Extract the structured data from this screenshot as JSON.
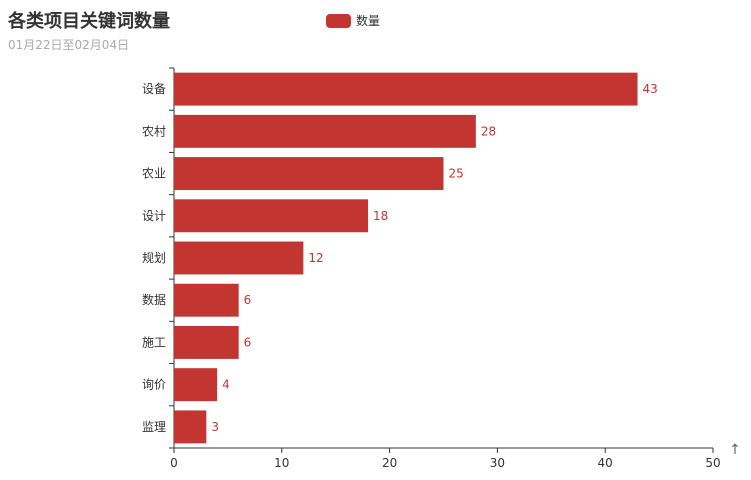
{
  "chart_data": {
    "type": "bar",
    "orientation": "horizontal",
    "title": "各类项目关键词数量",
    "subtitle": "01月22日至02月04日",
    "categories": [
      "设备",
      "农村",
      "农业",
      "设计",
      "规划",
      "数据",
      "施工",
      "询价",
      "监理"
    ],
    "series": [
      {
        "name": "数量",
        "values": [
          43,
          28,
          25,
          18,
          12,
          6,
          6,
          4,
          3
        ],
        "color": "#c23531"
      }
    ],
    "xlim": [
      0,
      50
    ],
    "xticks": [
      0,
      10,
      20,
      30,
      40,
      50
    ],
    "grid": false,
    "legend_position": "top"
  },
  "toolbox": {
    "icon": "up-arrow-icon",
    "glyph": "↑"
  },
  "colors": {
    "bar": "#c23531",
    "axis": "#333333",
    "text": "#333333",
    "subtitle": "#aaaaaa"
  }
}
